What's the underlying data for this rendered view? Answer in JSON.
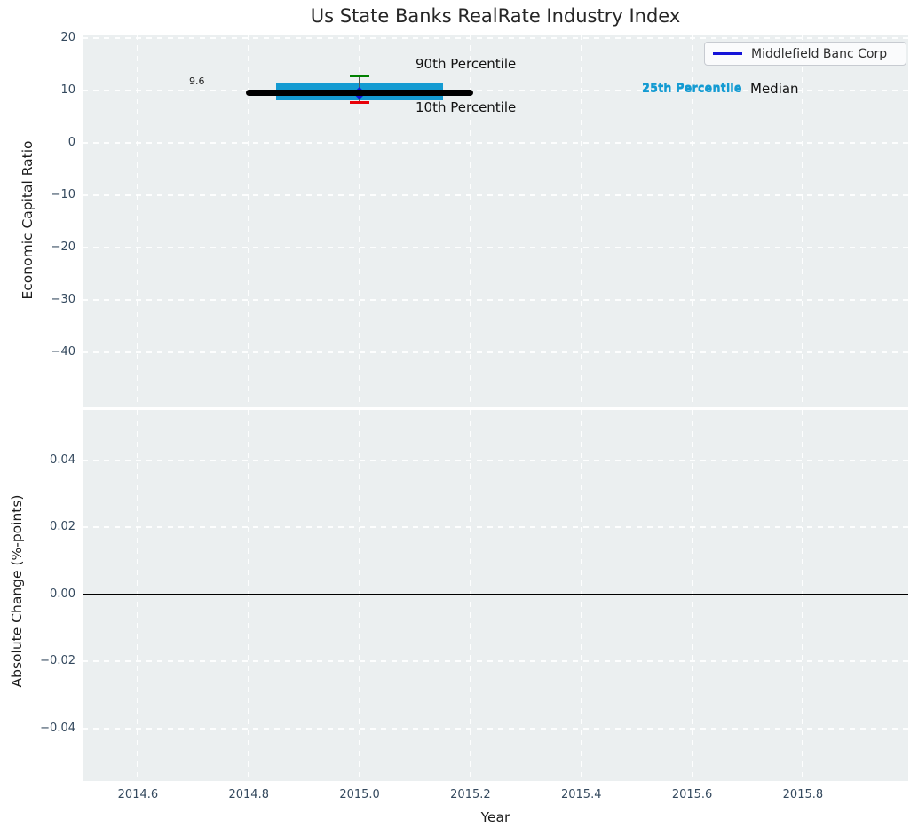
{
  "title": "Us State Banks RealRate Industry Index",
  "legend": {
    "label": "Middlefield Banc Corp"
  },
  "colors": {
    "plot_bg": "#ebeff0",
    "grid": "#ffffff",
    "tick_label": "#34495e",
    "axis_label": "#1c1c1c",
    "title": "#262626",
    "median_line": "#000000",
    "iqr_band": "#149bd2",
    "p90_cap": "#008000",
    "p10_cap": "#e80008",
    "errorbar_line": "#555555",
    "company": "#1413d8",
    "zero_line": "#000000",
    "p25_text": "#149bd2"
  },
  "chart_data": [
    {
      "type": "errorbar-summary",
      "title": "Us State Banks RealRate Industry Index",
      "ylabel": "Economic Capital Ratio",
      "xlabel": "",
      "xlim": [
        2014.5,
        2015.99
      ],
      "ylim": [
        -50.5,
        20.7
      ],
      "grid": "white dashed, both axes",
      "legend_position": "upper right",
      "yticks": [
        {
          "v": 20,
          "label": "20"
        },
        {
          "v": 10,
          "label": "10"
        },
        {
          "v": 0,
          "label": "0"
        },
        {
          "v": -10,
          "label": "−10"
        },
        {
          "v": -20,
          "label": "−20"
        },
        {
          "v": -30,
          "label": "−30"
        },
        {
          "v": -40,
          "label": "−40"
        }
      ],
      "xticks": [
        2014.6,
        2014.8,
        2015.0,
        2015.2,
        2015.4,
        2015.6,
        2015.8
      ],
      "series": [
        {
          "name": "Middlefield Banc Corp",
          "color": "#1413d8",
          "marker": "diamond",
          "x": [
            2015.0
          ],
          "y": [
            9.6
          ]
        }
      ],
      "percentiles": {
        "x": 2015.0,
        "p10": 7.8,
        "p25": 8.2,
        "median": 9.6,
        "p75": 11.4,
        "p90": 12.8,
        "median_span": [
          2014.8,
          2015.2
        ],
        "band_span": [
          2014.85,
          2015.15
        ],
        "cap_halfwidth": 0.017
      },
      "annotations": {
        "p90_label": "90th Percentile",
        "p10_label": "10th Percentile",
        "p25_label": "25th Percentile",
        "median_label": "Median",
        "median_value_label": "9.6"
      }
    },
    {
      "type": "line",
      "title": "",
      "ylabel": "Absolute Change (%-points)",
      "xlabel": "Year",
      "xlim": [
        2014.5,
        2015.99
      ],
      "ylim": [
        -0.0557,
        0.0551
      ],
      "grid": "white dashed, both axes",
      "yticks": [
        {
          "v": 0.04,
          "label": "0.04"
        },
        {
          "v": 0.02,
          "label": "0.02"
        },
        {
          "v": 0.0,
          "label": "0.00"
        },
        {
          "v": -0.02,
          "label": "−0.02"
        },
        {
          "v": -0.04,
          "label": "−0.04"
        }
      ],
      "xticks": [
        {
          "v": 2014.6,
          "label": "2014.6"
        },
        {
          "v": 2014.8,
          "label": "2014.8"
        },
        {
          "v": 2015.0,
          "label": "2015.0"
        },
        {
          "v": 2015.2,
          "label": "2015.2"
        },
        {
          "v": 2015.4,
          "label": "2015.4"
        },
        {
          "v": 2015.6,
          "label": "2015.6"
        },
        {
          "v": 2015.8,
          "label": "2015.8"
        }
      ],
      "series": [],
      "zero_line": 0.0
    }
  ]
}
